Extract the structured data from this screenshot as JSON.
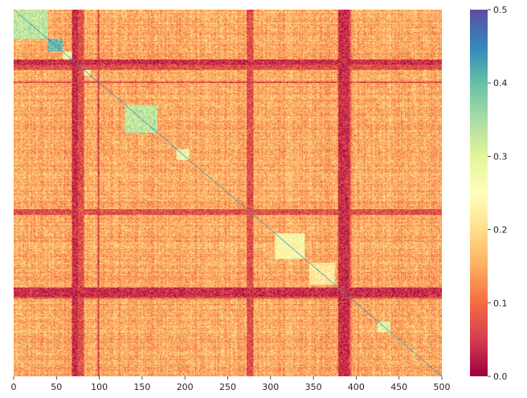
{
  "chart_data": {
    "type": "heatmap",
    "title": "",
    "xlabel": "",
    "ylabel": "",
    "xlim": [
      0,
      500
    ],
    "ylim": [
      500,
      0
    ],
    "xticks": [
      0,
      50,
      100,
      150,
      200,
      250,
      300,
      350,
      400,
      450,
      500
    ],
    "xtick_labels": [
      "0",
      "50",
      "100",
      "150",
      "200",
      "250",
      "300",
      "350",
      "400",
      "450",
      "500"
    ],
    "yticks": [],
    "n_rows": 500,
    "n_cols": 500,
    "colormap": "Spectral",
    "colorbar": {
      "vmin": 0.0,
      "vmax": 0.5,
      "ticks": [
        0.0,
        0.1,
        0.2,
        0.3,
        0.4,
        0.5
      ],
      "tick_labels": [
        "0.0",
        "0.1",
        "0.2",
        "0.3",
        "0.4",
        "0.5"
      ]
    },
    "background_value": 0.15,
    "diagonal_value": 0.45,
    "low_bands": [
      {
        "axis": "both",
        "start": 68,
        "end": 75,
        "value": 0.04
      },
      {
        "axis": "both",
        "start": 75,
        "end": 82,
        "value": 0.07
      },
      {
        "axis": "both",
        "start": 98,
        "end": 100,
        "value": 0.06
      },
      {
        "axis": "both",
        "start": 272,
        "end": 280,
        "value": 0.07
      },
      {
        "axis": "both",
        "start": 379,
        "end": 392,
        "value": 0.04
      },
      {
        "axis": "both",
        "start": 392,
        "end": 394,
        "value": 0.08
      }
    ],
    "high_blocks": [
      {
        "start": 0,
        "end": 40,
        "value": 0.33
      },
      {
        "start": 40,
        "end": 57,
        "value": 0.4
      },
      {
        "start": 57,
        "end": 68,
        "value": 0.28
      },
      {
        "start": 82,
        "end": 90,
        "value": 0.25
      },
      {
        "start": 130,
        "end": 168,
        "value": 0.33
      },
      {
        "start": 190,
        "end": 205,
        "value": 0.28
      },
      {
        "start": 305,
        "end": 340,
        "value": 0.25
      },
      {
        "start": 345,
        "end": 375,
        "value": 0.22
      },
      {
        "start": 425,
        "end": 440,
        "value": 0.3
      }
    ]
  }
}
